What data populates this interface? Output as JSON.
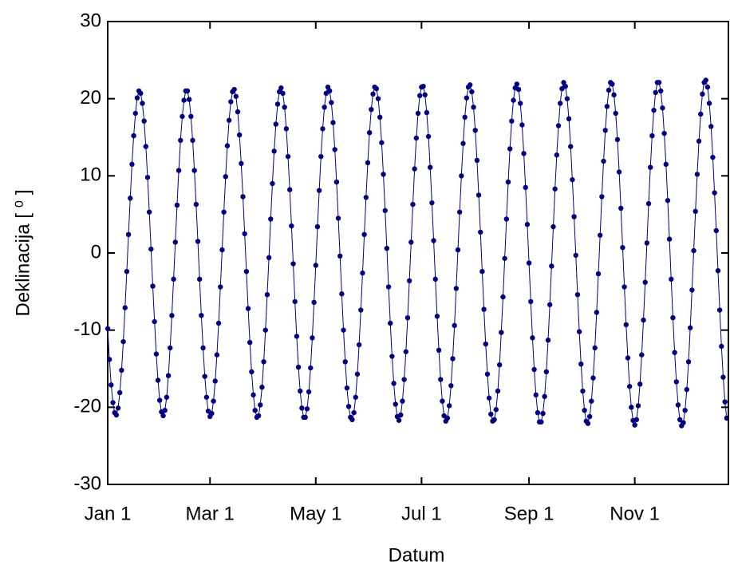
{
  "chart_data": {
    "type": "line",
    "x_label": "Datum",
    "y_label": "Deklinacija [ ⁰ ]",
    "color": "#000080",
    "xlim": [
      0,
      358
    ],
    "ylim": [
      -30,
      30
    ],
    "xticks": [
      {
        "value": 0,
        "label": "Jan 1"
      },
      {
        "value": 59,
        "label": "Mar 1"
      },
      {
        "value": 120,
        "label": "May 1"
      },
      {
        "value": 181,
        "label": "Jul 1"
      },
      {
        "value": 243,
        "label": "Sep 1"
      },
      {
        "value": 304,
        "label": "Nov 1"
      }
    ],
    "yticks": [
      -30,
      -20,
      -10,
      0,
      10,
      20,
      30
    ],
    "x": [
      0,
      1,
      2,
      3,
      4,
      5,
      6,
      7,
      8,
      9,
      10,
      11,
      12,
      13,
      14,
      15,
      16,
      17,
      18,
      19,
      20,
      21,
      22,
      23,
      24,
      25,
      26,
      27,
      28,
      29,
      30,
      31,
      32,
      33,
      34,
      35,
      36,
      37,
      38,
      39,
      40,
      41,
      42,
      43,
      44,
      45,
      46,
      47,
      48,
      49,
      50,
      51,
      52,
      53,
      54,
      55,
      56,
      57,
      58,
      59,
      60,
      61,
      62,
      63,
      64,
      65,
      66,
      67,
      68,
      69,
      70,
      71,
      72,
      73,
      74,
      75,
      76,
      77,
      78,
      79,
      80,
      81,
      82,
      83,
      84,
      85,
      86,
      87,
      88,
      89,
      90,
      91,
      92,
      93,
      94,
      95,
      96,
      97,
      98,
      99,
      100,
      101,
      102,
      103,
      104,
      105,
      106,
      107,
      108,
      109,
      110,
      111,
      112,
      113,
      114,
      115,
      116,
      117,
      118,
      119,
      120,
      121,
      122,
      123,
      124,
      125,
      126,
      127,
      128,
      129,
      130,
      131,
      132,
      133,
      134,
      135,
      136,
      137,
      138,
      139,
      140,
      141,
      142,
      143,
      144,
      145,
      146,
      147,
      148,
      149,
      150,
      151,
      152,
      153,
      154,
      155,
      156,
      157,
      158,
      159,
      160,
      161,
      162,
      163,
      164,
      165,
      166,
      167,
      168,
      169,
      170,
      171,
      172,
      173,
      174,
      175,
      176,
      177,
      178,
      179,
      180,
      181,
      182,
      183,
      184,
      185,
      186,
      187,
      188,
      189,
      190,
      191,
      192,
      193,
      194,
      195,
      196,
      197,
      198,
      199,
      200,
      201,
      202,
      203,
      204,
      205,
      206,
      207,
      208,
      209,
      210,
      211,
      212,
      213,
      214,
      215,
      216,
      217,
      218,
      219,
      220,
      221,
      222,
      223,
      224,
      225,
      226,
      227,
      228,
      229,
      230,
      231,
      232,
      233,
      234,
      235,
      236,
      237,
      238,
      239,
      240,
      241,
      242,
      243,
      244,
      245,
      246,
      247,
      248,
      249,
      250,
      251,
      252,
      253,
      254,
      255,
      256,
      257,
      258,
      259,
      260,
      261,
      262,
      263,
      264,
      265,
      266,
      267,
      268,
      269,
      270,
      271,
      272,
      273,
      274,
      275,
      276,
      277,
      278,
      279,
      280,
      281,
      282,
      283,
      284,
      285,
      286,
      287,
      288,
      289,
      290,
      291,
      292,
      293,
      294,
      295,
      296,
      297,
      298,
      299,
      300,
      301,
      302,
      303,
      304,
      305,
      306,
      307,
      308,
      309,
      310,
      311,
      312,
      313,
      314,
      315,
      316,
      317,
      318,
      319,
      320,
      321,
      322,
      323,
      324,
      325,
      326,
      327,
      328,
      329,
      330,
      331,
      332,
      333,
      334,
      335,
      336,
      337,
      338,
      339,
      340,
      341,
      342,
      343,
      344,
      345,
      346,
      347,
      348,
      349,
      350,
      351,
      352,
      353,
      354,
      355,
      356,
      357
    ],
    "values": [
      -9.8,
      -13.8,
      -17.1,
      -19.4,
      -20.7,
      -21.0,
      -20.1,
      -18.1,
      -15.2,
      -11.5,
      -7.1,
      -2.4,
      2.4,
      7.1,
      11.5,
      15.2,
      18.1,
      20.1,
      21.0,
      20.7,
      19.4,
      17.1,
      13.8,
      9.8,
      5.3,
      0.5,
      -4.3,
      -8.9,
      -13.1,
      -16.5,
      -19.1,
      -20.6,
      -21.1,
      -20.4,
      -18.7,
      -15.9,
      -12.3,
      -8.1,
      -3.4,
      1.4,
      6.2,
      10.7,
      14.6,
      17.7,
      19.8,
      21.0,
      21.0,
      19.9,
      17.7,
      14.6,
      10.7,
      6.3,
      1.5,
      -3.4,
      -8.1,
      -12.3,
      -16.0,
      -18.7,
      -20.5,
      -21.2,
      -20.8,
      -19.2,
      -16.6,
      -13.2,
      -9.1,
      -4.4,
      0.4,
      5.3,
      9.9,
      13.9,
      17.2,
      19.6,
      20.9,
      21.2,
      20.3,
      18.3,
      15.3,
      11.6,
      7.3,
      2.5,
      -2.4,
      -7.2,
      -11.6,
      -15.4,
      -18.4,
      -20.4,
      -21.3,
      -21.1,
      -19.7,
      -17.4,
      -14.1,
      -10.0,
      -5.4,
      -0.6,
      4.4,
      9.0,
      13.2,
      16.7,
      19.3,
      20.9,
      21.4,
      20.7,
      18.9,
      16.1,
      12.5,
      8.2,
      3.5,
      -1.4,
      -6.3,
      -10.8,
      -14.8,
      -17.9,
      -20.1,
      -21.3,
      -21.3,
      -20.2,
      -18.0,
      -14.9,
      -11.0,
      -6.4,
      -1.6,
      3.4,
      8.1,
      12.5,
      16.1,
      18.9,
      20.7,
      21.5,
      21.0,
      19.5,
      16.9,
      13.4,
      9.2,
      4.5,
      -0.4,
      -5.3,
      -10.0,
      -14.1,
      -17.5,
      -19.9,
      -21.3,
      -21.6,
      -20.7,
      -18.7,
      -15.7,
      -11.9,
      -7.4,
      -2.6,
      2.4,
      7.2,
      11.7,
      15.6,
      18.6,
      20.6,
      21.5,
      21.3,
      20.0,
      17.6,
      14.3,
      10.2,
      5.5,
      0.6,
      -4.4,
      -9.1,
      -13.4,
      -16.9,
      -19.6,
      -21.2,
      -21.7,
      -21.0,
      -19.2,
      -16.4,
      -12.8,
      -8.4,
      -3.6,
      1.4,
      6.3,
      10.9,
      14.9,
      18.1,
      20.4,
      21.5,
      21.6,
      20.5,
      18.2,
      15.1,
      11.1,
      6.5,
      1.6,
      -3.4,
      -8.2,
      -12.6,
      -16.4,
      -19.2,
      -21.1,
      -21.8,
      -21.4,
      -19.8,
      -17.2,
      -13.7,
      -9.4,
      -4.6,
      0.4,
      5.3,
      10.0,
      14.2,
      17.6,
      20.1,
      21.5,
      21.8,
      20.9,
      18.9,
      15.9,
      12.0,
      7.5,
      2.7,
      -2.4,
      -7.3,
      -11.8,
      -15.7,
      -18.8,
      -20.9,
      -21.8,
      -21.6,
      -20.3,
      -17.9,
      -14.5,
      -10.3,
      -5.7,
      -0.7,
      4.4,
      9.2,
      13.5,
      17.1,
      19.8,
      21.4,
      21.9,
      21.2,
      19.4,
      16.6,
      12.9,
      8.5,
      3.7,
      -1.3,
      -6.3,
      -11.0,
      -15.1,
      -18.4,
      -20.7,
      -21.9,
      -21.9,
      -20.8,
      -18.6,
      -15.4,
      -11.3,
      -6.7,
      -1.7,
      3.4,
      8.3,
      12.7,
      16.5,
      19.4,
      21.3,
      22.1,
      21.6,
      20.0,
      17.4,
      13.8,
      9.5,
      4.7,
      -0.3,
      -5.4,
      -10.2,
      -14.4,
      -17.9,
      -20.4,
      -21.8,
      -22.1,
      -21.2,
      -19.2,
      -16.2,
      -12.3,
      -7.7,
      -2.7,
      2.3,
      7.3,
      11.9,
      15.9,
      19.0,
      21.1,
      22.1,
      21.9,
      20.5,
      18.1,
      14.7,
      10.5,
      5.8,
      0.7,
      -4.4,
      -9.3,
      -13.6,
      -17.3,
      -20.0,
      -21.7,
      -22.3,
      -21.6,
      -19.8,
      -17.0,
      -13.2,
      -8.7,
      -3.8,
      1.3,
      6.4,
      11.1,
      15.2,
      18.5,
      20.8,
      22.1,
      22.1,
      21.0,
      18.8,
      15.5,
      11.5,
      6.8,
      1.8,
      -3.4,
      -8.4,
      -12.9,
      -16.7,
      -19.7,
      -21.6,
      -22.4,
      -22.0,
      -20.4,
      -17.7,
      -14.1,
      -9.7,
      -4.8,
      0.3,
      5.4,
      10.2,
      14.5,
      18.0,
      20.6,
      22.1,
      22.4,
      21.5,
      19.4,
      16.4,
      12.4,
      7.8,
      2.9,
      -2.3,
      -7.4,
      -12.1,
      -16.1,
      -19.3,
      -21.4
    ]
  }
}
